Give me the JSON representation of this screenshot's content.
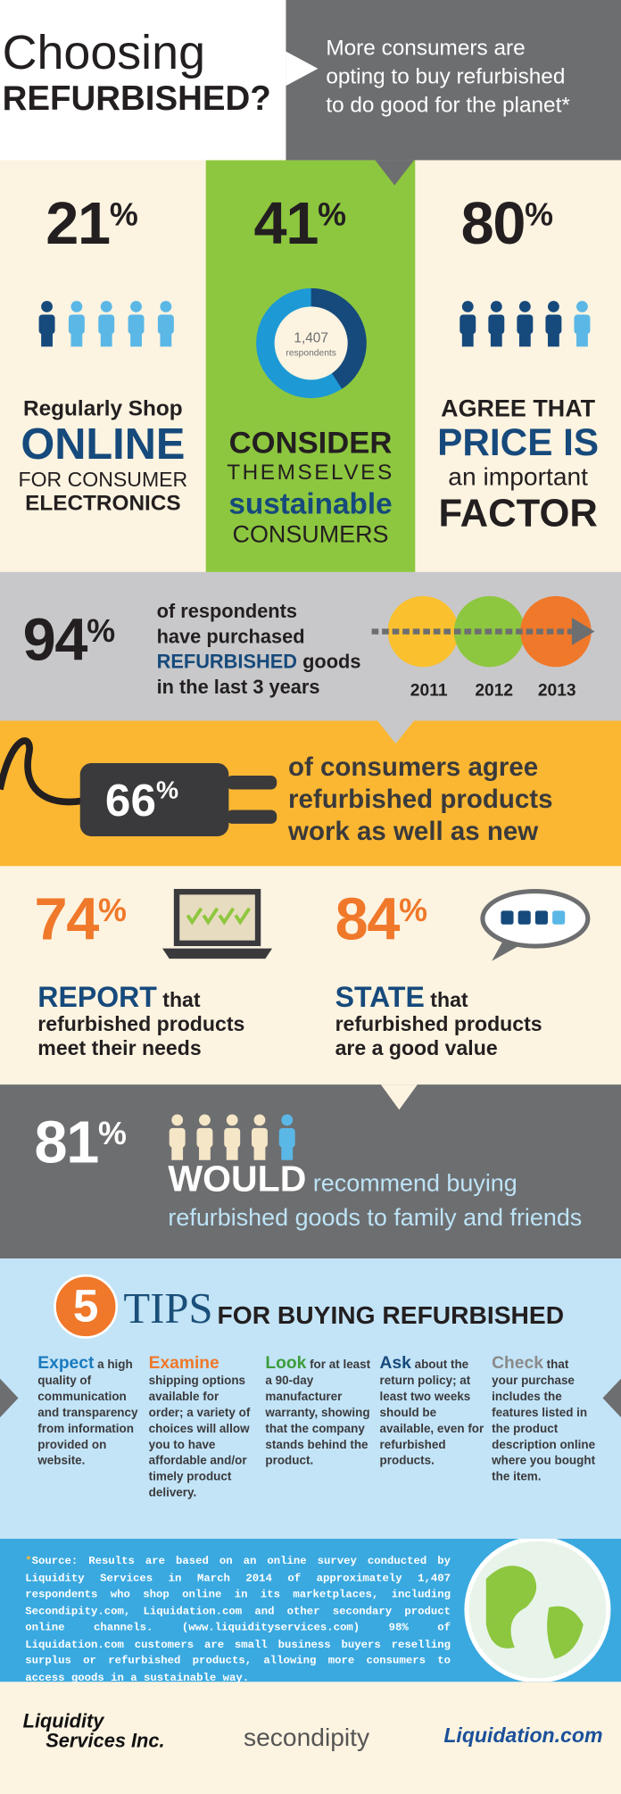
{
  "header": {
    "title": [
      "Choosing",
      "REFURBISHED?"
    ],
    "tagline": [
      "More consumers are",
      "opting to buy refurbished",
      "to do good for the planet*"
    ]
  },
  "stats": [
    {
      "number": "21",
      "unit": "%",
      "lines": [
        "Regularly Shop",
        "ONLINE",
        "FOR CONSUMER",
        "ELECTRONICS"
      ]
    },
    {
      "number": "41",
      "unit": "%",
      "donut": {
        "count": "1,407",
        "label": "respondents"
      },
      "lines": [
        "CONSIDER",
        "THEMSELVES",
        "sustainable",
        "CONSUMERS"
      ]
    },
    {
      "number": "80",
      "unit": "%",
      "lines": [
        "AGREE THAT",
        "PRICE IS",
        "an important",
        "FACTOR"
      ]
    }
  ],
  "purchased": {
    "number": "94",
    "unit": "%",
    "lines": [
      "of respondents",
      "have purchased"
    ],
    "highlight": "REFURBISHED",
    "rest": "goods",
    "last": "in the last 3 years",
    "years": [
      "2011",
      "2012",
      "2013"
    ]
  },
  "works": {
    "number": "66",
    "unit": "%",
    "lines": [
      "of consumers agree",
      "refurbished products",
      "work as well as new"
    ]
  },
  "needs": {
    "number": "74",
    "unit": "%",
    "lead": "REPORT",
    "rest": "that",
    "lines": [
      "refurbished products",
      "meet their needs"
    ]
  },
  "value": {
    "number": "84",
    "unit": "%",
    "lead": "STATE",
    "rest": "that",
    "lines": [
      "refurbished products",
      "are a good value"
    ]
  },
  "recommend": {
    "number": "81",
    "unit": "%",
    "lead": "WOULD",
    "rest": "recommend buying",
    "line2": "refurbished goods to family and friends"
  },
  "tips": {
    "count": "5",
    "title": "TIPS",
    "subtitle": "FOR BUYING REFURBISHED",
    "items": [
      {
        "lead": "Expect",
        "text": "a high quality of communication and transparency from information provided on website."
      },
      {
        "lead": "Examine",
        "text": "shipping options available for order; a variety of choices will allow you to have affordable and/or timely product delivery."
      },
      {
        "lead": "Look",
        "text": "for at least a 90-day manufacturer warranty, showing that the company stands behind the product."
      },
      {
        "lead": "Ask",
        "text": "about the return policy; at least two weeks should be available, even for refurbished products."
      },
      {
        "lead": "Check",
        "text": "that your purchase includes the features listed in the product description online where you bought the item."
      }
    ]
  },
  "source": {
    "mark": "*",
    "text": "Source: Results are based on an online survey conducted by Liquidity Services in March 2014 of approximately 1,407 respondents who shop online in its marketplaces, including Secondipity.com, Liquidation.com and other secondary product online channels. (www.liquidityservices.com) 98% of Liquidation.com customers are small business buyers reselling surplus or refurbished products, allowing more consumers to access goods in a sustainable way."
  },
  "logos": {
    "liquidity": [
      "Liquidity",
      "Services Inc."
    ],
    "secondipity": "secondipity",
    "liquidation": "Liquidation.com"
  }
}
